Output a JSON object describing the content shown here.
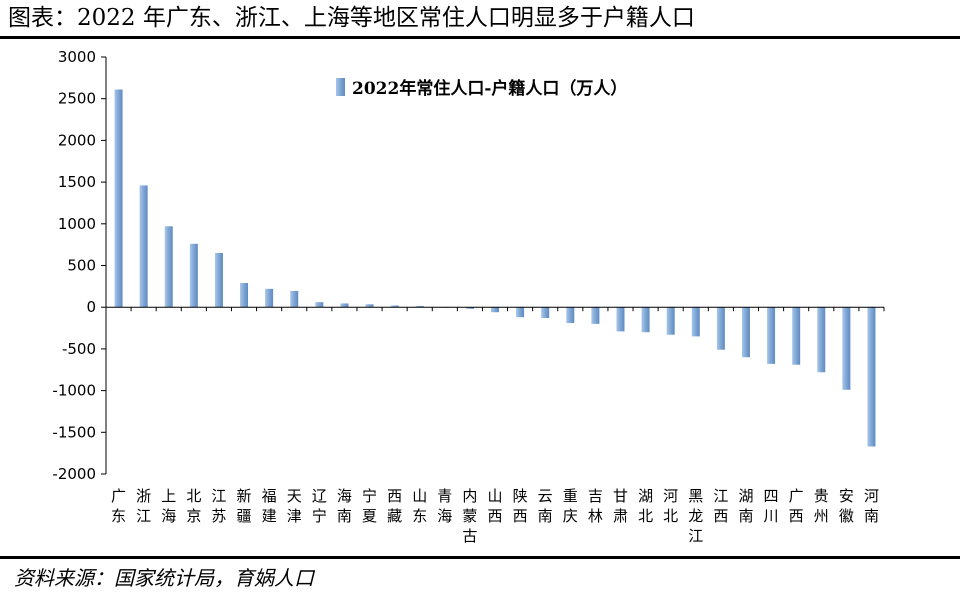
{
  "figure": {
    "title": "图表：2022 年广东、浙江、上海等地区常住人口明显多于户籍人口",
    "source": "资料来源：国家统计局，育娲人口"
  },
  "chart_data": {
    "type": "bar",
    "title": "",
    "xlabel": "",
    "ylabel": "",
    "ylim": [
      -2000,
      3000
    ],
    "yticks": [
      3000,
      2500,
      2000,
      1500,
      1000,
      500,
      0,
      -500,
      -1000,
      -1500,
      -2000
    ],
    "grid": false,
    "legend_position": "top-center",
    "bar_color": "#7ea6d4",
    "categories": [
      "广东",
      "浙江",
      "上海",
      "北京",
      "江苏",
      "新疆",
      "福建",
      "天津",
      "辽宁",
      "海南",
      "宁夏",
      "西藏",
      "山东",
      "青海",
      "内蒙古",
      "山西",
      "陕西",
      "云南",
      "重庆",
      "吉林",
      "甘肃",
      "湖北",
      "河北",
      "黑龙江",
      "江西",
      "湖南",
      "四川",
      "广西",
      "贵州",
      "安徽",
      "河南"
    ],
    "series": [
      {
        "name": "2022年常住人口-户籍人口（万人）",
        "values": [
          2610,
          1460,
          970,
          760,
          650,
          290,
          220,
          195,
          60,
          45,
          35,
          20,
          15,
          -5,
          -20,
          -60,
          -120,
          -130,
          -190,
          -200,
          -290,
          -300,
          -330,
          -350,
          -510,
          -600,
          -680,
          -690,
          -780,
          -990,
          -1670
        ]
      }
    ]
  }
}
